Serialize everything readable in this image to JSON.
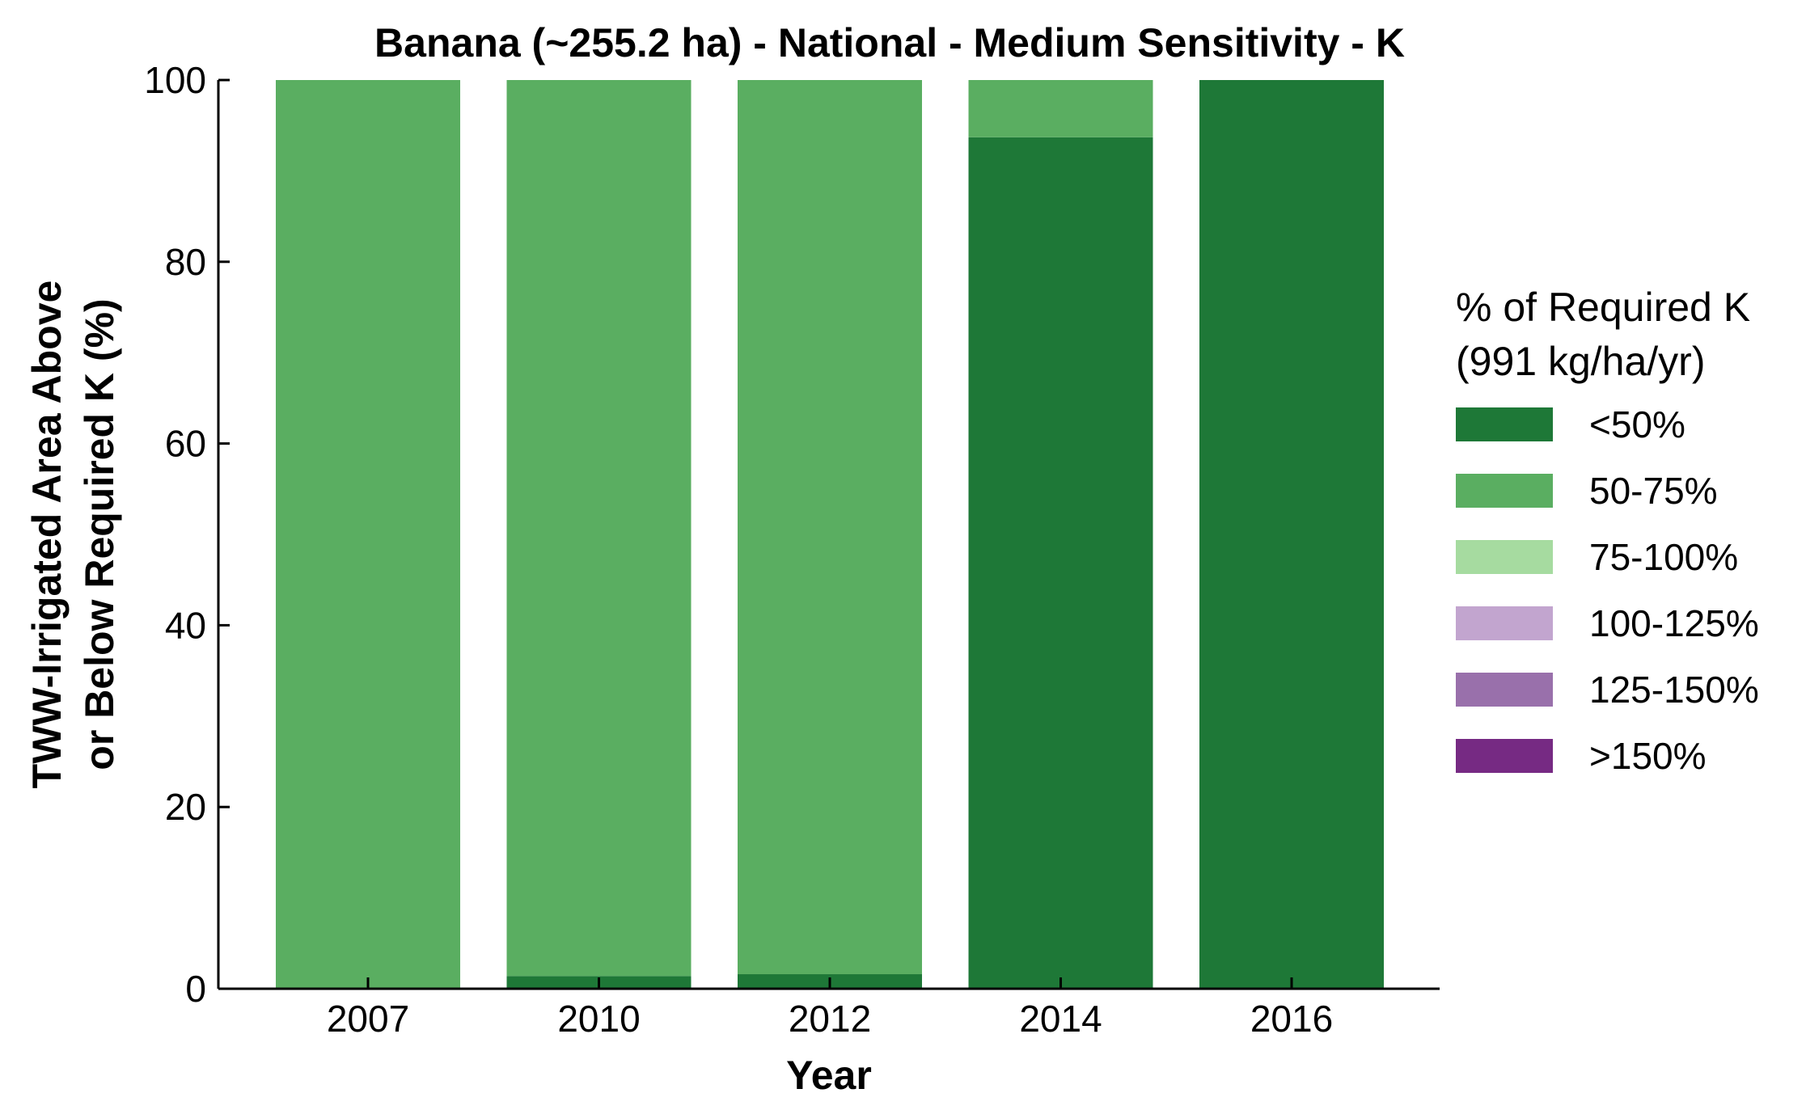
{
  "chart_data": {
    "type": "bar",
    "stacked": true,
    "title": "Banana (~255.2 ha) - National - Medium Sensitivity - K",
    "xlabel": "Year",
    "ylabel_lines": [
      "TWW-Irrigated Area Above",
      "or Below Required K (%)"
    ],
    "ylim": [
      0,
      100
    ],
    "yticks": [
      0,
      20,
      40,
      60,
      80,
      100
    ],
    "grid": false,
    "legend_placement": "right",
    "legend_title_lines": [
      "% of Required K",
      "(991 kg/ha/yr)"
    ],
    "categories": [
      "2007",
      "2010",
      "2012",
      "2014",
      "2016"
    ],
    "series": [
      {
        "name": "<50%",
        "color": "#1e7837",
        "values": [
          0,
          1.4,
          1.6,
          93.7,
          100
        ]
      },
      {
        "name": "50-75%",
        "color": "#5aae61",
        "values": [
          100,
          98.6,
          98.4,
          6.3,
          0
        ]
      },
      {
        "name": "75-100%",
        "color": "#a6dba0",
        "values": [
          0,
          0,
          0,
          0,
          0
        ]
      },
      {
        "name": "100-125%",
        "color": "#c2a5cf",
        "values": [
          0,
          0,
          0,
          0,
          0
        ]
      },
      {
        "name": "125-150%",
        "color": "#9970ab",
        "values": [
          0,
          0,
          0,
          0,
          0
        ]
      },
      {
        "name": ">150%",
        "color": "#762a83",
        "values": [
          0,
          0,
          0,
          0,
          0
        ]
      }
    ]
  }
}
